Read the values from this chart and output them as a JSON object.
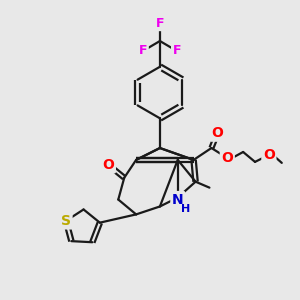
{
  "background_color": "#e8e8e8",
  "bond_color": "#1a1a1a",
  "atom_colors": {
    "F": "#ee00ee",
    "O": "#ff0000",
    "N": "#0000cc",
    "S": "#bbaa00",
    "C": "#1a1a1a"
  },
  "figsize": [
    3.0,
    3.0
  ],
  "dpi": 100
}
